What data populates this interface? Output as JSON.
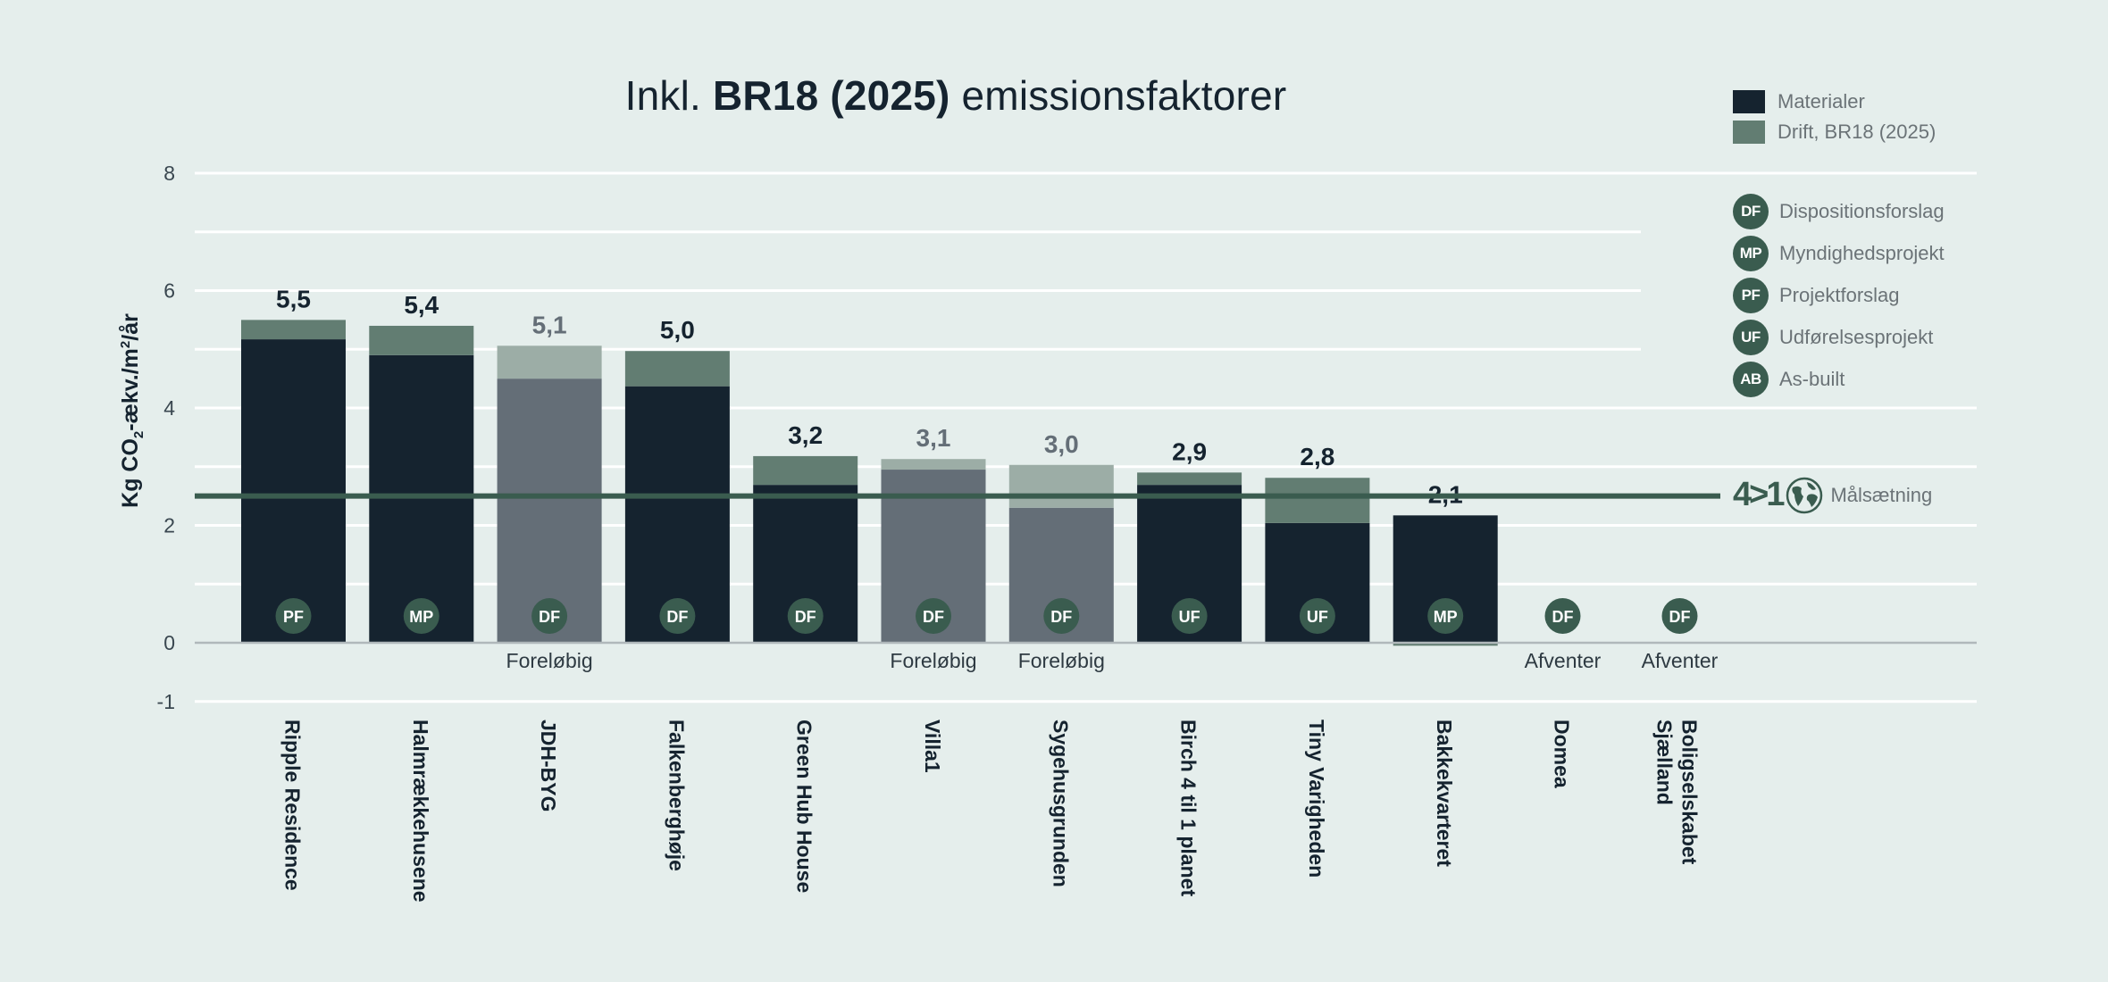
{
  "title": {
    "prefix": "Inkl. ",
    "bold": "BR18 (2025)",
    "suffix": " emissionsfaktorer"
  },
  "legend": {
    "series": [
      {
        "label": "Materialer",
        "color": "#15232f"
      },
      {
        "label": "Drift, BR18 (2025)",
        "color": "#627d72"
      }
    ],
    "phases": [
      {
        "code": "DF",
        "label": "Dispositionsforslag"
      },
      {
        "code": "MP",
        "label": "Myndighedsprojekt"
      },
      {
        "code": "PF",
        "label": "Projektforslag"
      },
      {
        "code": "UF",
        "label": "Udførelsesprojekt"
      },
      {
        "code": "AB",
        "label": "As-built"
      }
    ],
    "goal": {
      "logo": "4>1",
      "label": "Målsætning",
      "value": 2.5
    }
  },
  "colors": {
    "materials": "#15232f",
    "drift": "#627d72",
    "materials_preliminary": "#646e77",
    "drift_preliminary": "#9cada6",
    "goal_line": "#3a5c4f",
    "badge": "#3a5c4f",
    "label_final": "#15232f",
    "label_preliminary": "#646e77",
    "grid": "#ffffff",
    "zero_line": "#b0b8bb",
    "background": "#e5eeec"
  },
  "chart_data": {
    "type": "bar",
    "stacked": true,
    "title": "Inkl. BR18 (2025) emissionsfaktorer",
    "xlabel": "",
    "ylabel": "Kg CO2-ækv./m²/år",
    "ylim": [
      -1,
      8
    ],
    "yticks": [
      -1,
      0,
      2,
      4,
      6,
      8
    ],
    "grid": true,
    "legend_position": "right",
    "categories": [
      "Ripple Residence",
      "Halmrækkehusene",
      "JDH-BYG",
      "Falkenberghøje",
      "Green Hub House",
      "Villa1",
      "Sygehusgrunden",
      "Birch 4 til 1 planet",
      "Tiny Varigheden",
      "Bakkekvarteret",
      "Domea",
      "Boligselskabet Sjælland"
    ],
    "series": [
      {
        "name": "Materialer",
        "values": [
          5.17,
          4.9,
          4.5,
          4.37,
          2.69,
          2.95,
          2.3,
          2.69,
          2.04,
          2.17,
          null,
          null
        ]
      },
      {
        "name": "Drift, BR18 (2025)",
        "values": [
          0.33,
          0.5,
          0.56,
          0.6,
          0.49,
          0.18,
          0.73,
          0.21,
          0.77,
          -0.05,
          null,
          null
        ]
      }
    ],
    "totals_labels": [
      "5,5",
      "5,4",
      "5,1",
      "5,0",
      "3,2",
      "3,1",
      "3,0",
      "2,9",
      "2,8",
      "2,1",
      "",
      ""
    ],
    "phases": [
      "PF",
      "MP",
      "DF",
      "DF",
      "DF",
      "DF",
      "DF",
      "UF",
      "UF",
      "MP",
      "DF",
      "DF"
    ],
    "status": [
      "",
      "",
      "Foreløbig",
      "",
      "",
      "Foreløbig",
      "Foreløbig",
      "",
      "",
      "",
      "Afventer",
      "Afventer"
    ],
    "preliminary": [
      false,
      false,
      true,
      false,
      false,
      true,
      true,
      false,
      false,
      false,
      false,
      false
    ],
    "target_line": {
      "label": "Målsætning",
      "value": 2.5
    }
  }
}
